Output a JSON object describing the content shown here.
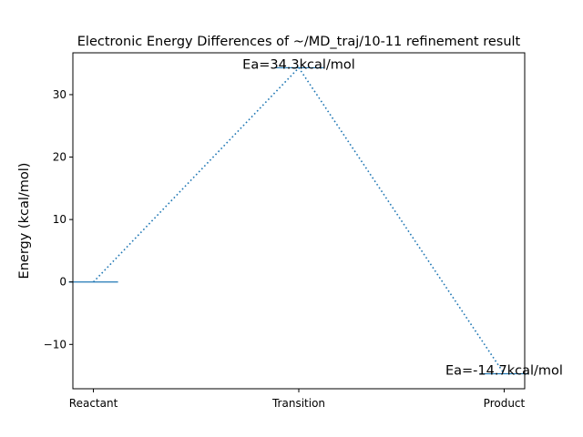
{
  "chart_data": {
    "type": "line",
    "title": "Electronic Energy Differences of ~/MD_traj/10-11 refinement result",
    "xlabel": "",
    "ylabel": "Energy (kcal/mol)",
    "categories": [
      "Reactant",
      "Transition",
      "Product"
    ],
    "values": [
      0,
      34.3,
      -14.7
    ],
    "ylim": [
      -17.1,
      36.7
    ],
    "yticks": [
      -10,
      0,
      10,
      20,
      30
    ],
    "ytick_labels": [
      "−10",
      "0",
      "10",
      "20",
      "30"
    ],
    "annotations": [
      {
        "text": "Ea=34.3kcal/mol",
        "category": "Transition",
        "value": 34.3
      },
      {
        "text": "Ea=-14.7kcal/mol",
        "category": "Product",
        "value": -14.7
      }
    ],
    "line_style": "dotted",
    "series_color": "#1f77b4",
    "grid": false
  }
}
